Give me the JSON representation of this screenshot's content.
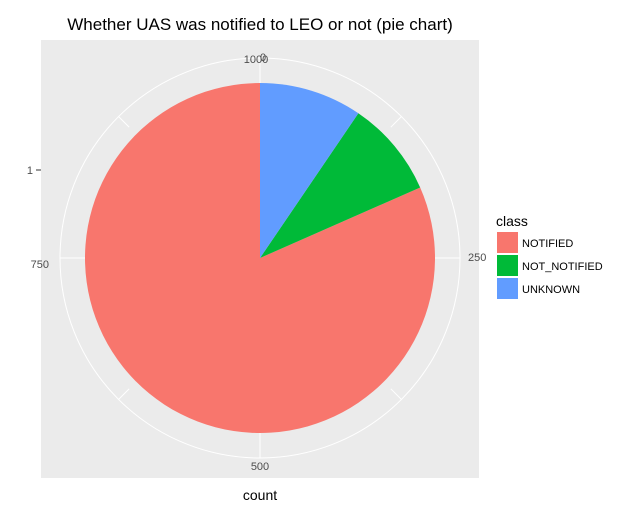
{
  "chart_data": {
    "type": "pie",
    "title": "Whether UAS was notified to LEO or not (pie chart)",
    "xlabel": "count",
    "ylabel": "",
    "y_tick_label": "1",
    "theta_ticks": [
      {
        "value": 0,
        "label": "0"
      },
      {
        "value": 250,
        "label": "250"
      },
      {
        "value": 500,
        "label": "500"
      },
      {
        "value": 750,
        "label": "750"
      },
      {
        "value": 1000,
        "label": "1000"
      }
    ],
    "total": 1000,
    "categories": [
      "NOTIFIED",
      "NOT_NOTIFIED",
      "UNKNOWN"
    ],
    "values": [
      816,
      89,
      95
    ],
    "colors": [
      "#F8766D",
      "#00BA38",
      "#619CFF"
    ],
    "legend": {
      "title": "class",
      "placement": "right",
      "items": [
        "NOTIFIED",
        "NOT_NOTIFIED",
        "UNKNOWN"
      ]
    },
    "panel_background": "#EBEBEB",
    "grid_color": "#FFFFFF",
    "grid": true
  }
}
